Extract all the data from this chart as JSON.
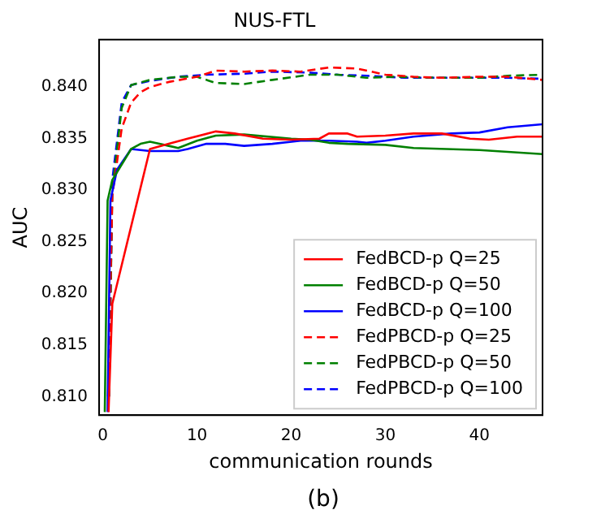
{
  "chart_data": {
    "type": "line",
    "title": "NUS-FTL",
    "xlabel": "communication rounds",
    "ylabel": "AUC",
    "xlim": [
      -0.4,
      46.7
    ],
    "xticks": [
      0,
      10,
      20,
      30,
      40
    ],
    "ylim": [
      0.8082,
      0.8446
    ],
    "yticks": [
      {
        "value": 0.81,
        "label": "0.810"
      },
      {
        "value": 0.815,
        "label": "0.815"
      },
      {
        "value": 0.82,
        "label": "0.820"
      },
      {
        "value": 0.825,
        "label": "0.825"
      },
      {
        "value": 0.83,
        "label": "0.830"
      },
      {
        "value": 0.835,
        "label": "0.835"
      },
      {
        "value": 0.84,
        "label": "0.840"
      }
    ],
    "grid": false,
    "legend": "bottom right",
    "marker": "none",
    "annotations": [
      "(b)"
    ],
    "series": [
      {
        "name": "FedBCD-p Q=25",
        "color": "#ff0000",
        "line_style": "solid",
        "x": [
          0.6,
          1,
          5,
          7,
          9,
          12,
          14,
          17,
          20,
          23,
          24,
          26,
          27,
          30,
          33,
          36,
          39,
          41,
          44,
          46.7
        ],
        "values": [
          0.8085,
          0.819,
          0.834,
          0.8345,
          0.835,
          0.8357,
          0.8355,
          0.835,
          0.8349,
          0.835,
          0.8355,
          0.8355,
          0.8352,
          0.8353,
          0.8355,
          0.8355,
          0.835,
          0.8349,
          0.8352,
          0.8352
        ]
      },
      {
        "name": "FedBCD-p Q=50",
        "color": "#008000",
        "line_style": "solid",
        "x": [
          0.2,
          0.5,
          1,
          3,
          4,
          5,
          6,
          7,
          8,
          10,
          12,
          15,
          20,
          22,
          24,
          26,
          30,
          33,
          40,
          46.7
        ],
        "values": [
          0.8085,
          0.829,
          0.831,
          0.834,
          0.8345,
          0.8347,
          0.8345,
          0.8343,
          0.8341,
          0.8348,
          0.8353,
          0.8354,
          0.835,
          0.8349,
          0.8346,
          0.8345,
          0.8344,
          0.8341,
          0.8339,
          0.8335
        ]
      },
      {
        "name": "FedBCD-p Q=100",
        "color": "#0000ff",
        "line_style": "solid",
        "x": [
          0.5,
          0.8,
          1.5,
          3,
          5,
          8,
          9,
          11,
          13,
          15,
          18,
          21,
          24,
          27,
          28,
          30,
          33,
          37,
          40,
          43,
          46.7
        ],
        "values": [
          0.8085,
          0.829,
          0.832,
          0.834,
          0.8338,
          0.8338,
          0.834,
          0.8345,
          0.8345,
          0.8343,
          0.8345,
          0.8348,
          0.8348,
          0.8347,
          0.8346,
          0.8348,
          0.8352,
          0.8355,
          0.8356,
          0.8361,
          0.8364
        ]
      },
      {
        "name": "FedPBCD-p Q=25",
        "color": "#ff0000",
        "line_style": "dashed",
        "x": [
          0.55,
          1,
          2,
          3,
          4,
          5,
          7,
          10,
          12,
          15,
          18,
          21,
          24,
          27,
          30,
          33,
          36,
          40,
          43,
          46.7
        ],
        "values": [
          0.81,
          0.8295,
          0.836,
          0.8385,
          0.8395,
          0.84,
          0.8405,
          0.841,
          0.8416,
          0.8415,
          0.8416,
          0.8415,
          0.8419,
          0.8418,
          0.8412,
          0.841,
          0.8409,
          0.841,
          0.841,
          0.8407
        ]
      },
      {
        "name": "FedPBCD-p Q=50",
        "color": "#008000",
        "line_style": "dashed",
        "x": [
          0.65,
          1,
          2,
          3,
          5,
          8,
          10,
          12,
          15,
          18,
          22,
          25,
          28,
          31,
          36,
          40,
          43,
          46.7
        ],
        "values": [
          0.81,
          0.83,
          0.838,
          0.8402,
          0.8407,
          0.841,
          0.841,
          0.8404,
          0.8403,
          0.8407,
          0.8412,
          0.8412,
          0.8409,
          0.841,
          0.8409,
          0.8409,
          0.8411,
          0.8412
        ]
      },
      {
        "name": "FedPBCD-p Q=100",
        "color": "#0000ff",
        "line_style": "dashed",
        "x": [
          0.65,
          1,
          2,
          3,
          5,
          8,
          11,
          15,
          18,
          22,
          25,
          28,
          32,
          36,
          40,
          43,
          46.7
        ],
        "values": [
          0.81,
          0.831,
          0.8385,
          0.8402,
          0.8406,
          0.841,
          0.8412,
          0.8413,
          0.8415,
          0.8414,
          0.8412,
          0.8411,
          0.8409,
          0.8409,
          0.8409,
          0.8409,
          0.8408
        ]
      }
    ]
  }
}
